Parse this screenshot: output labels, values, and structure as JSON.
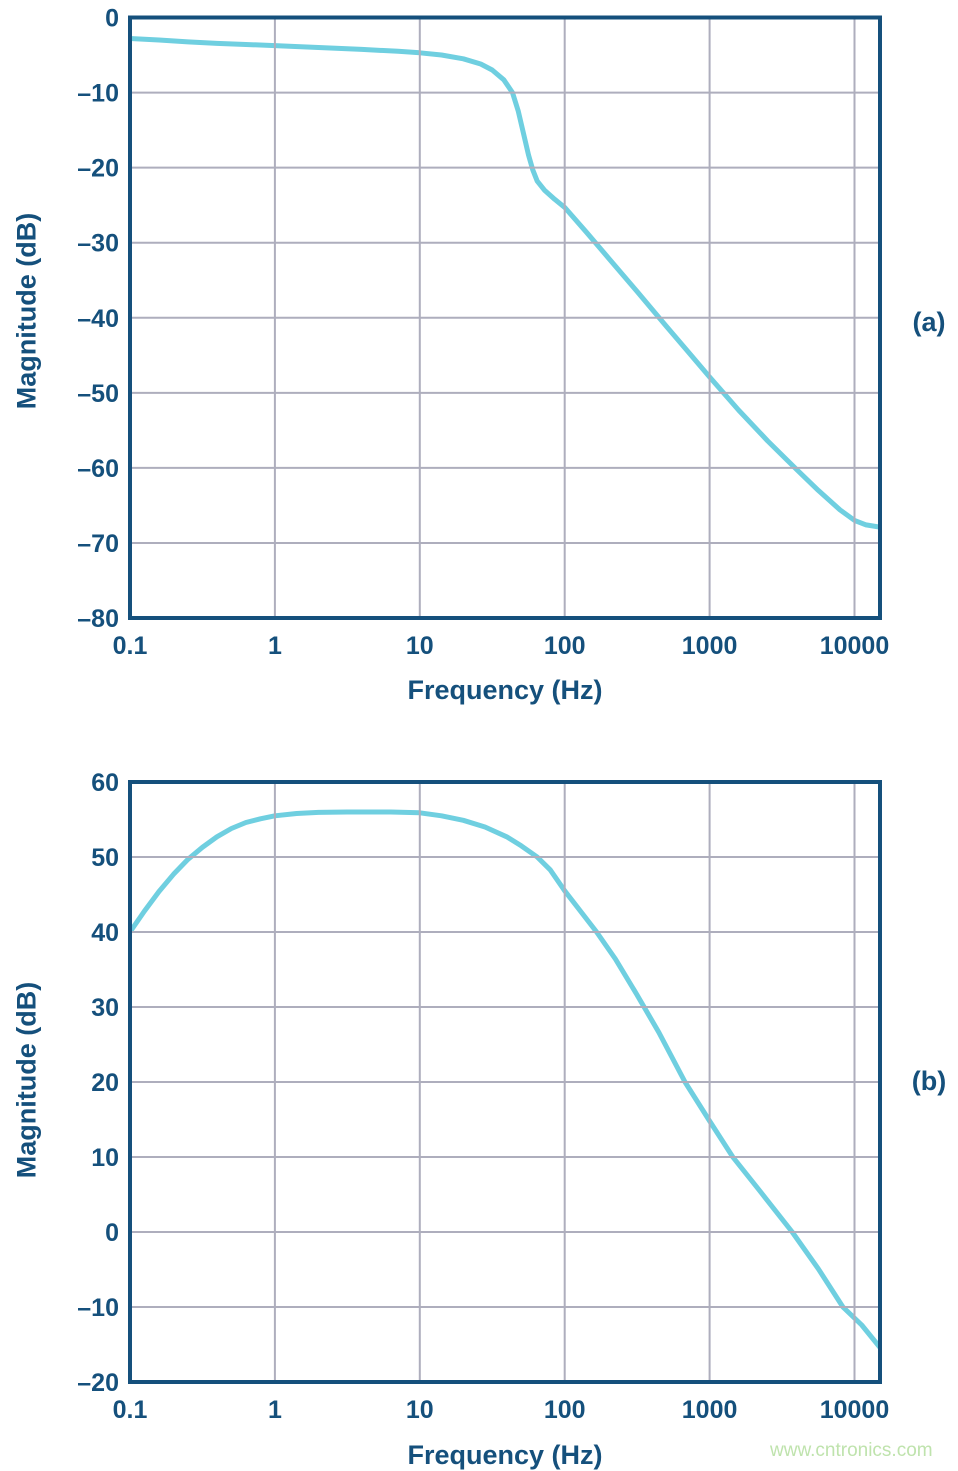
{
  "colors": {
    "axis_navy": "#15507c",
    "curve_cyan": "#6fcfe0",
    "grid_gray": "#aeaebd",
    "watermark_green": "#bfe3ad",
    "background": "#ffffff"
  },
  "watermark": {
    "text": "www.cntronics.com"
  },
  "chart_data": [
    {
      "type": "line",
      "panel_label": "(a)",
      "xlabel": "Frequency (Hz)",
      "ylabel": "Magnitude (dB)",
      "x_scale": "log",
      "x_range_hz": [
        0.1,
        15000
      ],
      "x_log_range": [
        -1,
        4.176
      ],
      "y_range": [
        -80,
        0
      ],
      "grid": true,
      "legend": "none",
      "x_ticks": {
        "labels": [
          "0.1",
          "1",
          "10",
          "100",
          "1000",
          "10000"
        ],
        "log10f": [
          -1,
          0,
          1,
          2,
          3,
          4
        ]
      },
      "y_ticks": {
        "labels": [
          "0",
          "–10",
          "–20",
          "–30",
          "–40",
          "–50",
          "–60",
          "–70",
          "–80"
        ],
        "values": [
          0,
          -10,
          -20,
          -30,
          -40,
          -50,
          -60,
          -70,
          -80
        ]
      },
      "series": [
        {
          "name": "magnitude response",
          "points_log10f_db": [
            [
              -1.0,
              -2.8
            ],
            [
              -0.8,
              -3.0
            ],
            [
              -0.6,
              -3.25
            ],
            [
              -0.4,
              -3.45
            ],
            [
              -0.2,
              -3.6
            ],
            [
              0.0,
              -3.75
            ],
            [
              0.3,
              -4.0
            ],
            [
              0.6,
              -4.25
            ],
            [
              0.85,
              -4.5
            ],
            [
              1.0,
              -4.7
            ],
            [
              1.15,
              -5.0
            ],
            [
              1.3,
              -5.5
            ],
            [
              1.42,
              -6.2
            ],
            [
              1.5,
              -7.0
            ],
            [
              1.58,
              -8.3
            ],
            [
              1.64,
              -10.0
            ],
            [
              1.68,
              -12.5
            ],
            [
              1.72,
              -15.8
            ],
            [
              1.75,
              -18.3
            ],
            [
              1.78,
              -20.3
            ],
            [
              1.81,
              -21.8
            ],
            [
              1.86,
              -23.0
            ],
            [
              1.93,
              -24.2
            ],
            [
              2.0,
              -25.3
            ],
            [
              2.15,
              -28.6
            ],
            [
              2.3,
              -32.0
            ],
            [
              2.5,
              -36.5
            ],
            [
              2.7,
              -41.1
            ],
            [
              2.85,
              -44.5
            ],
            [
              3.0,
              -47.9
            ],
            [
              3.2,
              -52.3
            ],
            [
              3.4,
              -56.4
            ],
            [
              3.6,
              -60.2
            ],
            [
              3.75,
              -63.0
            ],
            [
              3.9,
              -65.6
            ],
            [
              4.0,
              -67.0
            ],
            [
              4.08,
              -67.6
            ],
            [
              4.176,
              -67.9
            ]
          ]
        }
      ]
    },
    {
      "type": "line",
      "panel_label": "(b)",
      "xlabel": "Frequency (Hz)",
      "ylabel": "Magnitude (dB)",
      "x_scale": "log",
      "x_range_hz": [
        0.1,
        15000
      ],
      "x_log_range": [
        -1,
        4.176
      ],
      "y_range": [
        -20,
        60
      ],
      "grid": true,
      "legend": "none",
      "x_ticks": {
        "labels": [
          "0.1",
          "1",
          "10",
          "100",
          "1000",
          "10000"
        ],
        "log10f": [
          -1,
          0,
          1,
          2,
          3,
          4
        ]
      },
      "y_ticks": {
        "labels": [
          "60",
          "50",
          "40",
          "30",
          "20",
          "10",
          "0",
          "–10",
          "–20"
        ],
        "values": [
          60,
          50,
          40,
          30,
          20,
          10,
          0,
          -10,
          -20
        ]
      },
      "series": [
        {
          "name": "magnitude response",
          "points_log10f_db": [
            [
              -1.0,
              40.0
            ],
            [
              -0.9,
              42.8
            ],
            [
              -0.8,
              45.4
            ],
            [
              -0.7,
              47.7
            ],
            [
              -0.6,
              49.7
            ],
            [
              -0.5,
              51.3
            ],
            [
              -0.4,
              52.7
            ],
            [
              -0.3,
              53.8
            ],
            [
              -0.2,
              54.6
            ],
            [
              -0.1,
              55.1
            ],
            [
              0.0,
              55.5
            ],
            [
              0.15,
              55.8
            ],
            [
              0.3,
              55.95
            ],
            [
              0.5,
              56.0
            ],
            [
              0.8,
              56.0
            ],
            [
              1.0,
              55.9
            ],
            [
              1.15,
              55.5
            ],
            [
              1.3,
              54.9
            ],
            [
              1.45,
              54.0
            ],
            [
              1.6,
              52.7
            ],
            [
              1.7,
              51.5
            ],
            [
              1.81,
              50.0
            ],
            [
              1.9,
              48.3
            ],
            [
              2.0,
              45.5
            ],
            [
              2.1,
              43.0
            ],
            [
              2.22,
              40.0
            ],
            [
              2.35,
              36.4
            ],
            [
              2.5,
              31.6
            ],
            [
              2.65,
              26.6
            ],
            [
              2.83,
              20.0
            ],
            [
              3.0,
              14.8
            ],
            [
              3.16,
              10.0
            ],
            [
              3.35,
              5.4
            ],
            [
              3.57,
              0.0
            ],
            [
              3.75,
              -4.9
            ],
            [
              3.92,
              -10.0
            ],
            [
              4.05,
              -12.4
            ],
            [
              4.176,
              -15.4
            ]
          ]
        }
      ]
    }
  ]
}
